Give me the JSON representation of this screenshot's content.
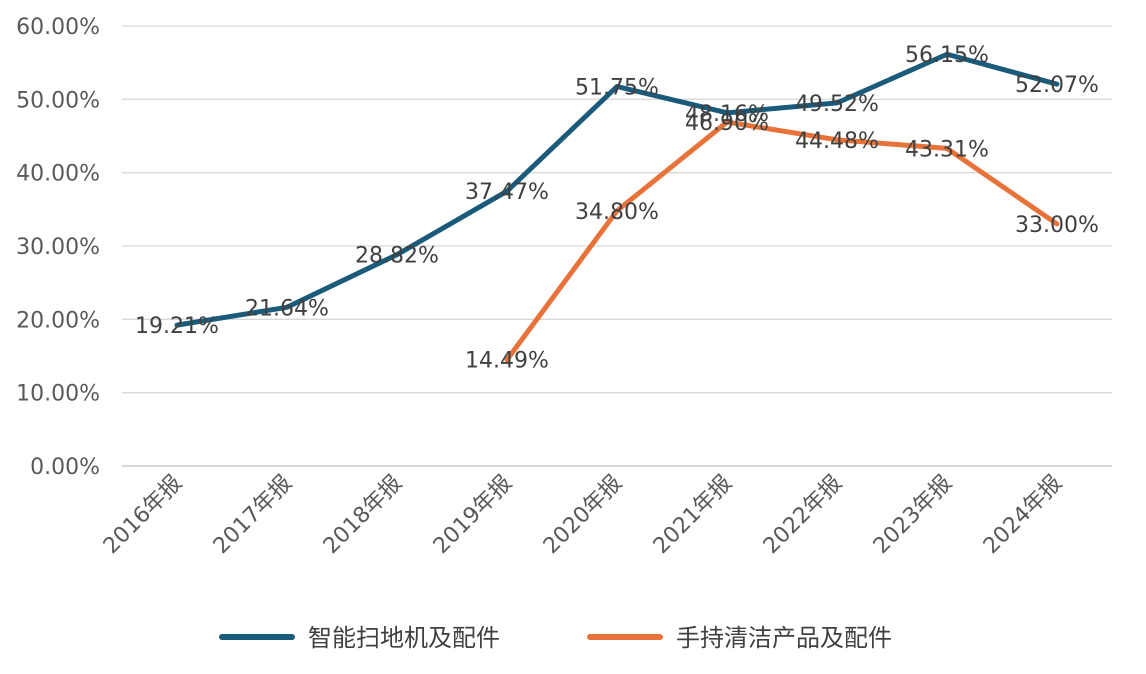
{
  "chart_data": {
    "type": "line",
    "categories": [
      "2016年报",
      "2017年报",
      "2018年报",
      "2019年报",
      "2020年报",
      "2021年报",
      "2022年报",
      "2023年报",
      "2024年报"
    ],
    "ylim": [
      0,
      60
    ],
    "yticks": [
      0,
      10,
      20,
      30,
      40,
      50,
      60
    ],
    "ytick_labels": [
      "0.00%",
      "10.00%",
      "20.00%",
      "30.00%",
      "40.00%",
      "50.00%",
      "60.00%"
    ],
    "grid": true,
    "legend_position": "bottom",
    "series": [
      {
        "name": "智能扫地机及配件",
        "color": "#1a5a7a",
        "values": [
          19.21,
          21.64,
          28.82,
          37.47,
          51.75,
          48.16,
          49.52,
          56.15,
          52.07
        ],
        "labels": [
          "19.21%",
          "21.64%",
          "28.82%",
          "37.47%",
          "51.75%",
          "48.16%",
          "49.52%",
          "56.15%",
          "52.07%"
        ]
      },
      {
        "name": "手持清洁产品及配件",
        "color": "#e8733a",
        "values": [
          null,
          null,
          null,
          14.49,
          34.8,
          46.9,
          44.48,
          43.31,
          33.0
        ],
        "labels": [
          null,
          null,
          null,
          "14.49%",
          "34.80%",
          "46.90%",
          "44.48%",
          "43.31%",
          "33.00%"
        ]
      }
    ]
  }
}
